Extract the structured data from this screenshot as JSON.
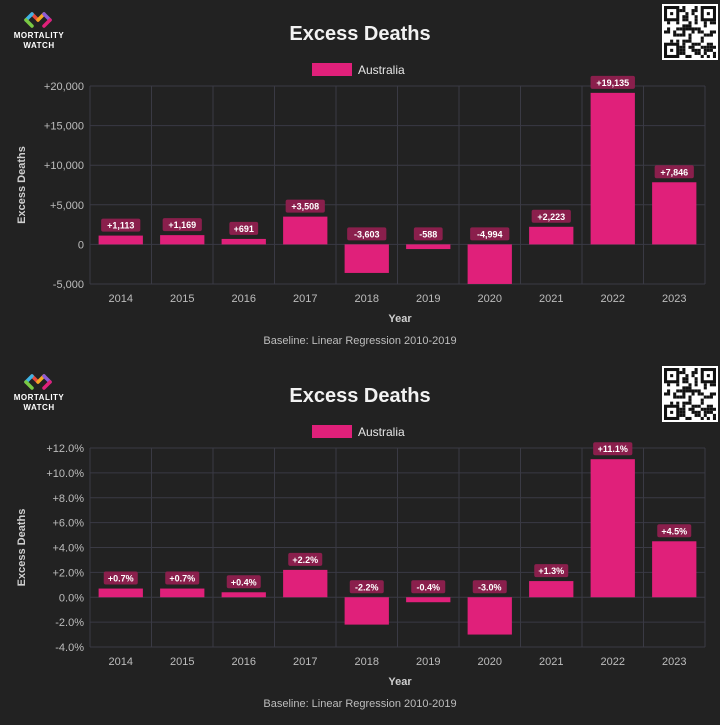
{
  "brand": {
    "name_line1": "MORTALITY",
    "name_line2": "WATCH"
  },
  "colors": {
    "background": "#222222",
    "bar": "#e0207a",
    "label_bg": "#8a1f4c",
    "grid": "#3a3a44"
  },
  "chart_data": [
    {
      "type": "bar",
      "title": "Excess Deaths",
      "ylabel": "Excess Deaths",
      "xlabel": "Year",
      "caption": "Baseline: Linear Regression 2010-2019",
      "legend": {
        "position": "top-center"
      },
      "categories": [
        "2014",
        "2015",
        "2016",
        "2017",
        "2018",
        "2019",
        "2020",
        "2021",
        "2022",
        "2023"
      ],
      "series": [
        {
          "name": "Australia",
          "values": [
            1113,
            1169,
            691,
            3508,
            -3603,
            -588,
            -4994,
            2223,
            19135,
            7846
          ]
        }
      ],
      "data_labels": [
        "+1,113",
        "+1,169",
        "+691",
        "+3,508",
        "-3,603",
        "-588",
        "-4,994",
        "+2,223",
        "+19,135",
        "+7,846"
      ],
      "ylim": [
        -5000,
        20000
      ],
      "yticks": [
        20000,
        15000,
        10000,
        5000,
        0,
        -5000
      ],
      "ytick_labels": [
        "+20,000",
        "+15,000",
        "+10,000",
        "+5,000",
        "0",
        "-5,000"
      ],
      "grid": true
    },
    {
      "type": "bar",
      "title": "Excess Deaths",
      "ylabel": "Excess Deaths",
      "xlabel": "Year",
      "caption": "Baseline: Linear Regression 2010-2019",
      "legend": {
        "position": "top-center"
      },
      "categories": [
        "2014",
        "2015",
        "2016",
        "2017",
        "2018",
        "2019",
        "2020",
        "2021",
        "2022",
        "2023"
      ],
      "series": [
        {
          "name": "Australia",
          "values": [
            0.7,
            0.7,
            0.4,
            2.2,
            -2.2,
            -0.4,
            -3.0,
            1.3,
            11.1,
            4.5
          ]
        }
      ],
      "data_labels": [
        "+0.7%",
        "+0.7%",
        "+0.4%",
        "+2.2%",
        "-2.2%",
        "-0.4%",
        "-3.0%",
        "+1.3%",
        "+11.1%",
        "+4.5%"
      ],
      "ylim": [
        -4,
        12
      ],
      "yticks": [
        12,
        10,
        8,
        6,
        4,
        2,
        0,
        -2,
        -4
      ],
      "ytick_labels": [
        "+12.0%",
        "+10.0%",
        "+8.0%",
        "+6.0%",
        "+4.0%",
        "+2.0%",
        "0.0%",
        "-2.0%",
        "-4.0%"
      ],
      "grid": true
    }
  ]
}
